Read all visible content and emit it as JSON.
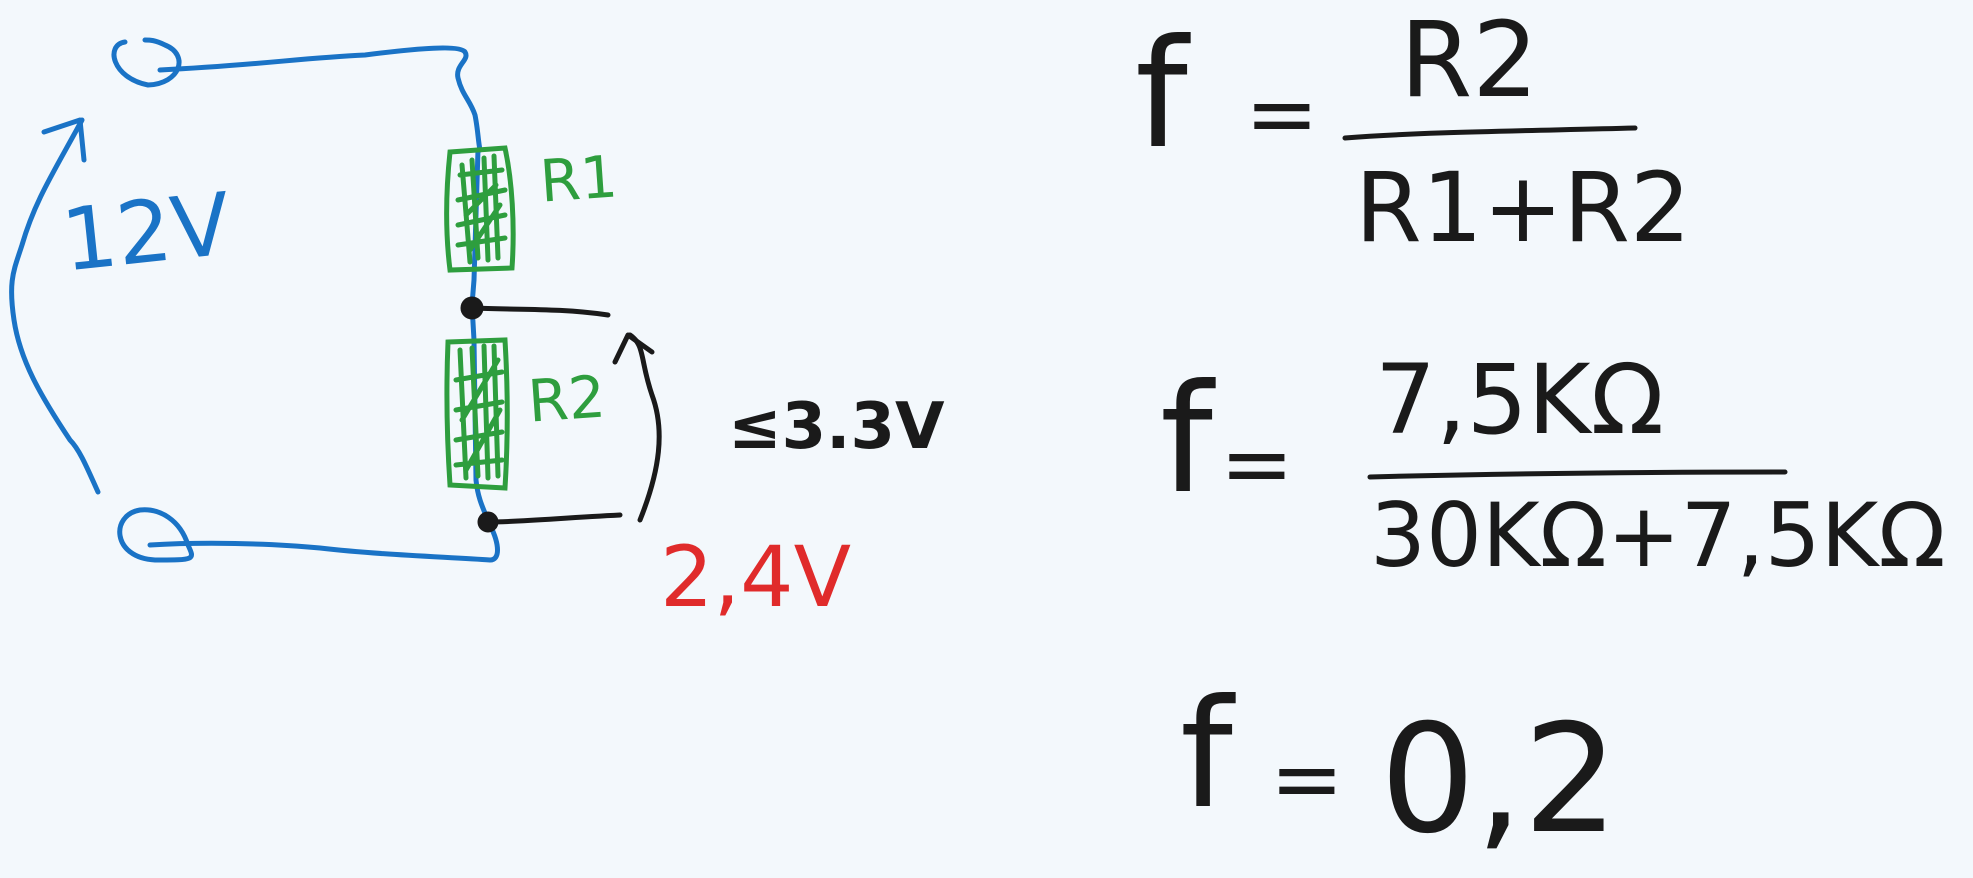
{
  "colors": {
    "wire": "#1a73c6",
    "resistor": "#2e9e3e",
    "ink": "#1a1a1a",
    "highlight": "#e02b2b",
    "background": "#f3f8fc"
  },
  "circuit": {
    "source_label": "12V",
    "r1_label": "R1",
    "r2_label": "R2",
    "limit_label": "≤3.3V",
    "output_label": "2,4V"
  },
  "equations": {
    "eq1": {
      "lhs": "f",
      "equals": "=",
      "numerator": "R2",
      "denominator": "R1+R2"
    },
    "eq2": {
      "lhs": "f",
      "equals": "=",
      "numerator": "7,5KΩ",
      "denominator": "30KΩ+7,5KΩ"
    },
    "eq3": {
      "lhs": "f",
      "equals": "=",
      "value": "0,2"
    }
  }
}
